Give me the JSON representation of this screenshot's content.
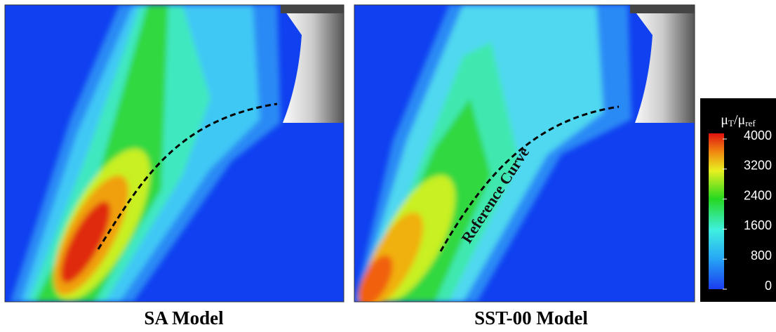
{
  "panels": [
    {
      "caption": "SA Model"
    },
    {
      "caption": "SST-00 Model",
      "annotation": "Reference Curve"
    }
  ],
  "colorbar": {
    "title_parts": [
      "μ",
      "T",
      "/μ",
      "ref"
    ],
    "ticks": [
      0,
      800,
      1600,
      2400,
      3200,
      4000
    ],
    "range": [
      0,
      4150
    ]
  }
}
